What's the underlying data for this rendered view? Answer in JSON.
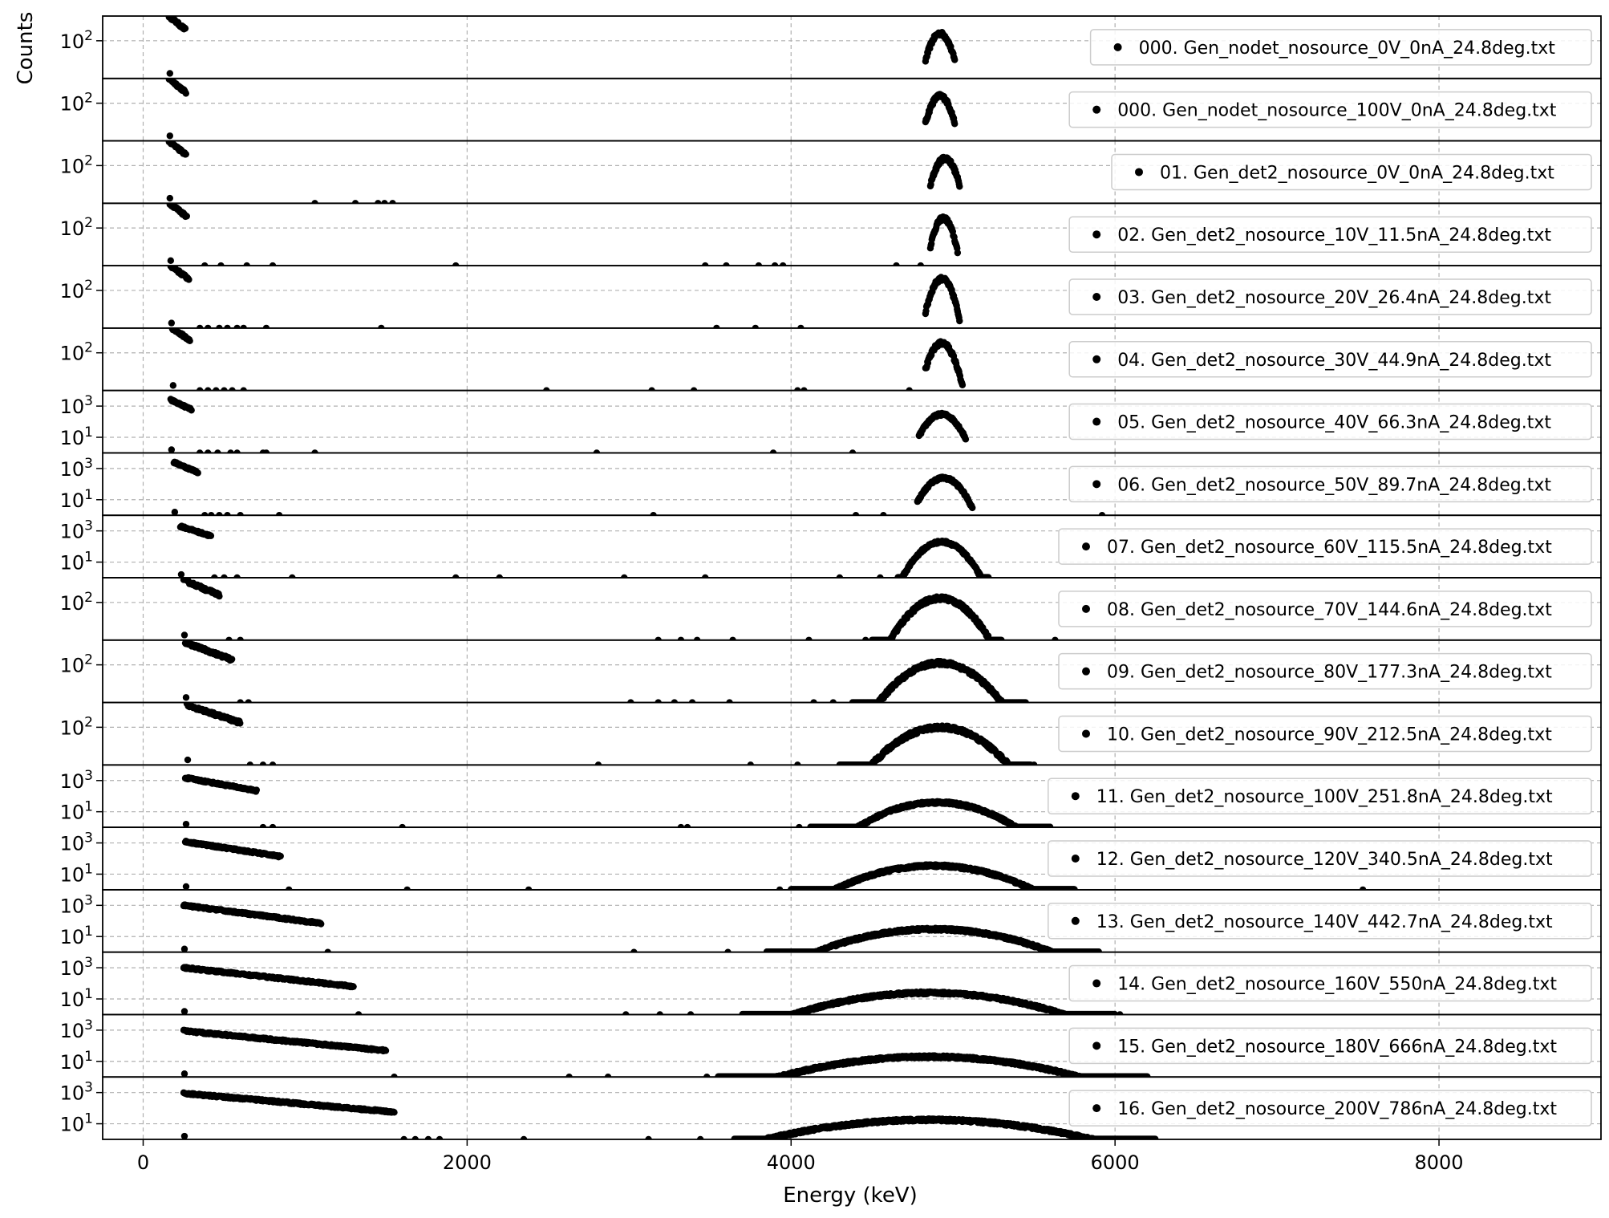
{
  "chart_data": {
    "type": "scatter",
    "xlabel": "Energy (keV)",
    "ylabel": "Counts",
    "xlim": [
      -250,
      9000
    ],
    "xticks": [
      0,
      2000,
      4000,
      6000,
      8000
    ],
    "yscale": "log",
    "grid": true,
    "marker_color": "#000000",
    "legend_position": "right",
    "series": [
      {
        "name": "000. Gen_nodet_nosource_0V_0nA_24.8deg.txt",
        "ylim": [
          3,
          1000
        ],
        "yticks": [
          {
            "value": 100,
            "base": "10",
            "exp": "2"
          }
        ],
        "low": {
          "start": 160,
          "peak": 1000,
          "decay": 80,
          "end": 260
        },
        "peak": {
          "center": 4920,
          "height": 200,
          "sigma": 40,
          "range": [
            4830,
            5010
          ]
        },
        "outliers": []
      },
      {
        "name": "000. Gen_nodet_nosource_100V_0nA_24.8deg.txt",
        "ylim": [
          3,
          1000
        ],
        "yticks": [
          {
            "value": 100,
            "base": "10",
            "exp": "2"
          }
        ],
        "low": {
          "start": 160,
          "peak": 1000,
          "decay": 80,
          "end": 265
        },
        "peak": {
          "center": 4920,
          "height": 200,
          "sigma": 40,
          "range": [
            4830,
            5010
          ]
        },
        "outliers": []
      },
      {
        "name": "01. Gen_det2_nosource_0V_0nA_24.8deg.txt",
        "ylim": [
          3,
          1000
        ],
        "yticks": [
          {
            "value": 100,
            "base": "10",
            "exp": "2"
          }
        ],
        "low": {
          "start": 160,
          "peak": 1000,
          "decay": 80,
          "end": 265
        },
        "peak": {
          "center": 4950,
          "height": 200,
          "sigma": 40,
          "range": [
            4860,
            5040
          ]
        },
        "outliers": [
          1060,
          1310,
          1450,
          1490,
          1540
        ]
      },
      {
        "name": "02. Gen_det2_nosource_10V_11.5nA_24.8deg.txt",
        "ylim": [
          3,
          1000
        ],
        "yticks": [
          {
            "value": 100,
            "base": "10",
            "exp": "2"
          }
        ],
        "low": {
          "start": 165,
          "peak": 1000,
          "decay": 85,
          "end": 270
        },
        "peak": {
          "center": 4940,
          "height": 250,
          "sigma": 35,
          "range": [
            4860,
            5030
          ]
        },
        "outliers": [
          380,
          480,
          640,
          800,
          1930,
          3470,
          3600,
          3800,
          3900,
          3950,
          4650,
          4800
        ]
      },
      {
        "name": "03. Gen_det2_nosource_20V_26.4nA_24.8deg.txt",
        "ylim": [
          3,
          1000
        ],
        "yticks": [
          {
            "value": 100,
            "base": "10",
            "exp": "2"
          }
        ],
        "low": {
          "start": 170,
          "peak": 1000,
          "decay": 90,
          "end": 285
        },
        "peak": {
          "center": 4930,
          "height": 300,
          "sigma": 40,
          "range": [
            4830,
            5040
          ]
        },
        "outliers": [
          350,
          400,
          470,
          520,
          580,
          620,
          760,
          1470,
          3540,
          3780,
          4060
        ]
      },
      {
        "name": "04. Gen_det2_nosource_30V_44.9nA_24.8deg.txt",
        "ylim": [
          3,
          1000
        ],
        "yticks": [
          {
            "value": 100,
            "base": "10",
            "exp": "2"
          }
        ],
        "low": {
          "start": 180,
          "peak": 1000,
          "decay": 100,
          "end": 290
        },
        "peak": {
          "center": 4930,
          "height": 250,
          "sigma": 45,
          "range": [
            4830,
            5060
          ]
        },
        "outliers": [
          350,
          400,
          450,
          500,
          550,
          620,
          2490,
          3140,
          3400,
          4040,
          4080,
          4730
        ]
      },
      {
        "name": "05. Gen_det2_nosource_40V_66.3nA_24.8deg.txt",
        "ylim": [
          1,
          10000
        ],
        "yticks": [
          {
            "value": 10,
            "base": "10",
            "exp": "1"
          },
          {
            "value": 1000,
            "base": "10",
            "exp": "3"
          }
        ],
        "low": {
          "start": 170,
          "peak": 2500,
          "decay": 90,
          "end": 300
        },
        "peak": {
          "center": 4930,
          "height": 300,
          "sigma": 55,
          "range": [
            4790,
            5080
          ]
        },
        "outliers": [
          350,
          400,
          460,
          540,
          580,
          740,
          760,
          1060,
          2800,
          3890,
          4380
        ]
      },
      {
        "name": "06. Gen_det2_nosource_50V_89.7nA_24.8deg.txt",
        "ylim": [
          1,
          10000
        ],
        "yticks": [
          {
            "value": 10,
            "base": "10",
            "exp": "1"
          },
          {
            "value": 1000,
            "base": "10",
            "exp": "3"
          }
        ],
        "low": {
          "start": 190,
          "peak": 2500,
          "decay": 100,
          "end": 340
        },
        "peak": {
          "center": 4940,
          "height": 250,
          "sigma": 60,
          "range": [
            4780,
            5120
          ]
        },
        "outliers": [
          380,
          420,
          470,
          520,
          600,
          840,
          3150,
          4400,
          4570,
          5920
        ]
      },
      {
        "name": "07. Gen_det2_nosource_60V_115.5nA_24.8deg.txt",
        "ylim": [
          1,
          10000
        ],
        "yticks": [
          {
            "value": 10,
            "base": "10",
            "exp": "1"
          },
          {
            "value": 1000,
            "base": "10",
            "exp": "3"
          }
        ],
        "low": {
          "start": 230,
          "peak": 2000,
          "decay": 130,
          "end": 420
        },
        "peak": {
          "center": 4930,
          "height": 200,
          "sigma": 75,
          "range": [
            4660,
            5220
          ]
        },
        "outliers": [
          440,
          500,
          580,
          920,
          1930,
          2200,
          2970,
          3470,
          4300,
          4550
        ]
      },
      {
        "name": "08. Gen_det2_nosource_70V_144.6nA_24.8deg.txt",
        "ylim": [
          3,
          1000
        ],
        "yticks": [
          {
            "value": 100,
            "base": "10",
            "exp": "2"
          }
        ],
        "low": {
          "start": 250,
          "peak": 800,
          "decay": 160,
          "end": 470
        },
        "peak": {
          "center": 4920,
          "height": 150,
          "sigma": 110,
          "range": [
            4500,
            5300
          ]
        },
        "outliers": [
          530,
          600,
          3180,
          3320,
          3420,
          3640,
          4110,
          4460,
          5630
        ]
      },
      {
        "name": "09. Gen_det2_nosource_80V_177.3nA_24.8deg.txt",
        "ylim": [
          3,
          1000
        ],
        "yticks": [
          {
            "value": 100,
            "base": "10",
            "exp": "2"
          }
        ],
        "low": {
          "start": 260,
          "peak": 800,
          "decay": 180,
          "end": 550
        },
        "peak": {
          "center": 4920,
          "height": 120,
          "sigma": 140,
          "range": [
            4380,
            5450
          ]
        },
        "outliers": [
          600,
          650,
          3010,
          3180,
          3280,
          3390,
          3620,
          4140,
          4260,
          4380
        ]
      },
      {
        "name": "10. Gen_det2_nosource_90V_212.5nA_24.8deg.txt",
        "ylim": [
          3,
          1000
        ],
        "yticks": [
          {
            "value": 100,
            "base": "10",
            "exp": "2"
          }
        ],
        "low": {
          "start": 270,
          "peak": 800,
          "decay": 200,
          "end": 600
        },
        "peak": {
          "center": 4920,
          "height": 100,
          "sigma": 160,
          "range": [
            4300,
            5480
          ]
        },
        "outliers": [
          660,
          740,
          800,
          2810,
          3750,
          4040,
          4300,
          5500
        ]
      },
      {
        "name": "11. Gen_det2_nosource_100V_251.8nA_24.8deg.txt",
        "ylim": [
          1,
          10000
        ],
        "yticks": [
          {
            "value": 10,
            "base": "10",
            "exp": "1"
          },
          {
            "value": 1000,
            "base": "10",
            "exp": "3"
          }
        ],
        "low": {
          "start": 260,
          "peak": 1500,
          "decay": 230,
          "end": 700
        },
        "peak": {
          "center": 4900,
          "height": 40,
          "sigma": 180,
          "range": [
            4120,
            5600
          ]
        },
        "outliers": [
          740,
          800,
          1600,
          3320,
          3360,
          4050
        ]
      },
      {
        "name": "12. Gen_det2_nosource_120V_340.5nA_24.8deg.txt",
        "ylim": [
          1,
          10000
        ],
        "yticks": [
          {
            "value": 10,
            "base": "10",
            "exp": "1"
          },
          {
            "value": 1000,
            "base": "10",
            "exp": "3"
          }
        ],
        "low": {
          "start": 260,
          "peak": 1200,
          "decay": 270,
          "end": 850
        },
        "peak": {
          "center": 4880,
          "height": 35,
          "sigma": 230,
          "range": [
            4000,
            5750
          ]
        },
        "outliers": [
          900,
          1630,
          2380,
          3930,
          7530
        ]
      },
      {
        "name": "13. Gen_det2_nosource_140V_442.7nA_24.8deg.txt",
        "ylim": [
          1,
          10000
        ],
        "yticks": [
          {
            "value": 10,
            "base": "10",
            "exp": "1"
          },
          {
            "value": 1000,
            "base": "10",
            "exp": "3"
          }
        ],
        "low": {
          "start": 250,
          "peak": 1000,
          "decay": 320,
          "end": 1100
        },
        "peak": {
          "center": 4880,
          "height": 30,
          "sigma": 280,
          "range": [
            3850,
            5900
          ]
        },
        "outliers": [
          1140,
          3030,
          3610
        ]
      },
      {
        "name": "14. Gen_det2_nosource_160V_550nA_24.8deg.txt",
        "ylim": [
          1,
          10000
        ],
        "yticks": [
          {
            "value": 10,
            "base": "10",
            "exp": "1"
          },
          {
            "value": 1000,
            "base": "10",
            "exp": "3"
          }
        ],
        "low": {
          "start": 250,
          "peak": 1000,
          "decay": 380,
          "end": 1300
        },
        "peak": {
          "center": 4850,
          "height": 25,
          "sigma": 330,
          "range": [
            3700,
            6000
          ]
        },
        "outliers": [
          1330,
          2980,
          3190,
          3380,
          6030
        ]
      },
      {
        "name": "15. Gen_det2_nosource_180V_666nA_24.8deg.txt",
        "ylim": [
          1,
          10000
        ],
        "yticks": [
          {
            "value": 10,
            "base": "10",
            "exp": "1"
          },
          {
            "value": 1000,
            "base": "10",
            "exp": "3"
          }
        ],
        "low": {
          "start": 250,
          "peak": 900,
          "decay": 430,
          "end": 1500
        },
        "peak": {
          "center": 4850,
          "height": 20,
          "sigma": 380,
          "range": [
            3550,
            6200
          ]
        },
        "outliers": [
          1550,
          2630,
          2870,
          3480,
          3680
        ]
      },
      {
        "name": "16. Gen_det2_nosource_200V_786nA_24.8deg.txt",
        "ylim": [
          1,
          10000
        ],
        "yticks": [
          {
            "value": 10,
            "base": "10",
            "exp": "1"
          },
          {
            "value": 1000,
            "base": "10",
            "exp": "3"
          }
        ],
        "low": {
          "start": 250,
          "peak": 900,
          "decay": 470,
          "end": 1550
        },
        "peak": {
          "center": 4850,
          "height": 18,
          "sigma": 420,
          "range": [
            3650,
            6250
          ]
        },
        "outliers": [
          1610,
          1680,
          1760,
          1830,
          2350,
          3120,
          3440
        ]
      }
    ]
  }
}
